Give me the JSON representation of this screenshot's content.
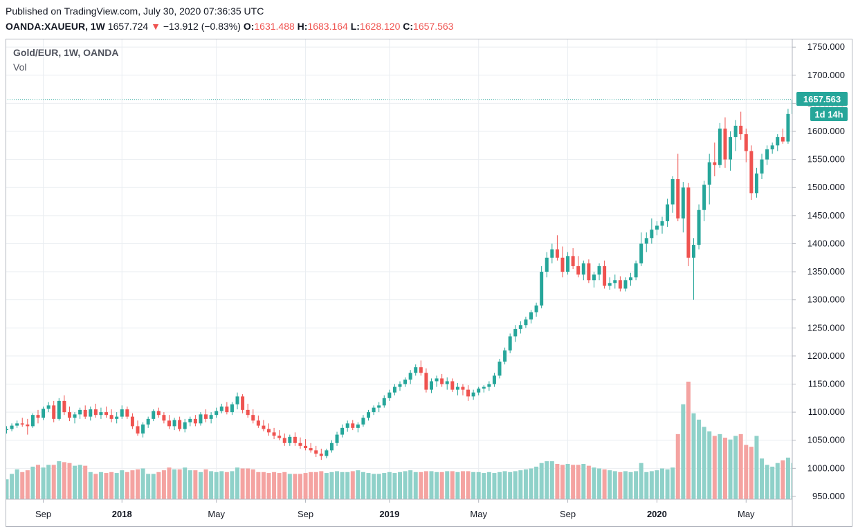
{
  "header": {
    "published": "Published on TradingView.com, July 30, 2020 07:36:35 UTC",
    "symbol": "OANDA:XAUEUR, 1W",
    "last": "1657.724",
    "arrow": "▼",
    "change": "−13.912 (−0.83%)",
    "o_label": "O:",
    "o_value": "1631.488",
    "h_label": "H:",
    "h_value": "1683.164",
    "l_label": "L:",
    "l_value": "1628.120",
    "c_label": "C:",
    "c_value": "1657.563"
  },
  "legend": {
    "title": "Gold/EUR, 1W, OANDA",
    "volume": "Vol"
  },
  "price_tag": {
    "price": "1657.563",
    "countdown": "1d 14h"
  },
  "colors": {
    "up": "#26a69a",
    "down": "#ef5350",
    "vol_up": "#8fd1c9",
    "vol_down": "#f4a3a1",
    "grid": "#e9edf1"
  },
  "chart_data": {
    "type": "candlestick",
    "y_axis_ticks": [
      "1750.000",
      "1700.000",
      "1650.000",
      "1600.000",
      "1550.000",
      "1500.000",
      "1450.000",
      "1400.000",
      "1350.000",
      "1300.000",
      "1250.000",
      "1200.000",
      "1150.000",
      "1100.000",
      "1050.000",
      "1000.000",
      "950.000"
    ],
    "x_axis_ticks": [
      {
        "label": "Sep",
        "bold": false,
        "bar": 7
      },
      {
        "label": "2018",
        "bold": true,
        "bar": 22
      },
      {
        "label": "May",
        "bold": false,
        "bar": 40
      },
      {
        "label": "Sep",
        "bold": false,
        "bar": 57
      },
      {
        "label": "2019",
        "bold": true,
        "bar": 73
      },
      {
        "label": "May",
        "bold": false,
        "bar": 90
      },
      {
        "label": "Sep",
        "bold": false,
        "bar": 107
      },
      {
        "label": "2020",
        "bold": true,
        "bar": 124
      },
      {
        "label": "May",
        "bold": false,
        "bar": 141
      }
    ],
    "ylim": [
      945,
      1765
    ],
    "bars": [
      [
        1068,
        1075,
        1062,
        1070,
        22
      ],
      [
        1070,
        1080,
        1066,
        1076,
        28
      ],
      [
        1076,
        1085,
        1072,
        1080,
        33
      ],
      [
        1080,
        1090,
        1074,
        1078,
        30
      ],
      [
        1078,
        1088,
        1060,
        1075,
        32
      ],
      [
        1075,
        1098,
        1072,
        1095,
        36
      ],
      [
        1095,
        1104,
        1080,
        1090,
        38
      ],
      [
        1090,
        1110,
        1086,
        1106,
        35
      ],
      [
        1106,
        1118,
        1100,
        1112,
        38
      ],
      [
        1112,
        1120,
        1082,
        1088,
        38
      ],
      [
        1088,
        1125,
        1085,
        1120,
        42
      ],
      [
        1120,
        1130,
        1095,
        1100,
        41
      ],
      [
        1100,
        1110,
        1084,
        1090,
        40
      ],
      [
        1090,
        1100,
        1080,
        1096,
        37
      ],
      [
        1096,
        1108,
        1088,
        1104,
        38
      ],
      [
        1104,
        1112,
        1088,
        1092,
        37
      ],
      [
        1092,
        1110,
        1085,
        1105,
        30
      ],
      [
        1105,
        1115,
        1090,
        1095,
        28
      ],
      [
        1095,
        1108,
        1088,
        1100,
        30
      ],
      [
        1100,
        1110,
        1090,
        1095,
        29
      ],
      [
        1095,
        1105,
        1082,
        1088,
        30
      ],
      [
        1088,
        1100,
        1080,
        1092,
        29
      ],
      [
        1092,
        1112,
        1088,
        1105,
        32
      ],
      [
        1105,
        1110,
        1088,
        1092,
        30
      ],
      [
        1092,
        1098,
        1070,
        1075,
        32
      ],
      [
        1075,
        1085,
        1058,
        1062,
        33
      ],
      [
        1062,
        1082,
        1055,
        1078,
        34
      ],
      [
        1078,
        1092,
        1072,
        1088,
        28
      ],
      [
        1088,
        1105,
        1084,
        1102,
        28
      ],
      [
        1102,
        1108,
        1090,
        1095,
        30
      ],
      [
        1095,
        1100,
        1080,
        1085,
        32
      ],
      [
        1085,
        1095,
        1070,
        1075,
        35
      ],
      [
        1075,
        1090,
        1068,
        1086,
        33
      ],
      [
        1086,
        1092,
        1066,
        1070,
        33
      ],
      [
        1070,
        1088,
        1064,
        1082,
        35
      ],
      [
        1082,
        1092,
        1075,
        1088,
        32
      ],
      [
        1088,
        1095,
        1075,
        1080,
        32
      ],
      [
        1080,
        1100,
        1076,
        1096,
        30
      ],
      [
        1096,
        1105,
        1082,
        1088,
        33
      ],
      [
        1088,
        1100,
        1080,
        1095,
        31
      ],
      [
        1095,
        1108,
        1090,
        1102,
        30
      ],
      [
        1102,
        1115,
        1098,
        1110,
        31
      ],
      [
        1110,
        1118,
        1096,
        1100,
        30
      ],
      [
        1100,
        1118,
        1095,
        1114,
        31
      ],
      [
        1114,
        1135,
        1105,
        1128,
        35
      ],
      [
        1128,
        1132,
        1098,
        1104,
        34
      ],
      [
        1104,
        1115,
        1090,
        1095,
        34
      ],
      [
        1095,
        1105,
        1080,
        1085,
        33
      ],
      [
        1085,
        1094,
        1072,
        1076,
        30
      ],
      [
        1076,
        1086,
        1066,
        1070,
        30
      ],
      [
        1070,
        1080,
        1058,
        1064,
        29
      ],
      [
        1064,
        1072,
        1052,
        1058,
        30
      ],
      [
        1058,
        1068,
        1050,
        1054,
        29
      ],
      [
        1054,
        1062,
        1040,
        1045,
        30
      ],
      [
        1045,
        1060,
        1040,
        1056,
        28
      ],
      [
        1056,
        1064,
        1040,
        1045,
        28
      ],
      [
        1045,
        1055,
        1035,
        1040,
        28
      ],
      [
        1040,
        1052,
        1032,
        1036,
        29
      ],
      [
        1036,
        1045,
        1028,
        1032,
        30
      ],
      [
        1032,
        1040,
        1020,
        1026,
        30
      ],
      [
        1026,
        1035,
        1015,
        1022,
        31
      ],
      [
        1022,
        1035,
        1018,
        1032,
        29
      ],
      [
        1032,
        1050,
        1028,
        1045,
        30
      ],
      [
        1045,
        1065,
        1040,
        1060,
        31
      ],
      [
        1060,
        1078,
        1055,
        1072,
        30
      ],
      [
        1072,
        1085,
        1065,
        1080,
        30
      ],
      [
        1080,
        1086,
        1068,
        1072,
        31
      ],
      [
        1072,
        1082,
        1064,
        1078,
        32
      ],
      [
        1078,
        1095,
        1074,
        1090,
        30
      ],
      [
        1090,
        1104,
        1085,
        1100,
        29
      ],
      [
        1100,
        1112,
        1095,
        1108,
        28
      ],
      [
        1108,
        1118,
        1100,
        1112,
        28
      ],
      [
        1112,
        1130,
        1108,
        1125,
        29
      ],
      [
        1125,
        1140,
        1120,
        1135,
        30
      ],
      [
        1135,
        1150,
        1130,
        1145,
        29
      ],
      [
        1145,
        1155,
        1138,
        1150,
        30
      ],
      [
        1150,
        1162,
        1145,
        1158,
        31
      ],
      [
        1158,
        1175,
        1150,
        1170,
        32
      ],
      [
        1170,
        1185,
        1165,
        1180,
        30
      ],
      [
        1180,
        1192,
        1165,
        1170,
        30
      ],
      [
        1170,
        1178,
        1135,
        1140,
        31
      ],
      [
        1140,
        1160,
        1134,
        1155,
        31
      ],
      [
        1155,
        1165,
        1145,
        1160,
        30
      ],
      [
        1160,
        1168,
        1145,
        1150,
        30
      ],
      [
        1150,
        1162,
        1140,
        1155,
        31
      ],
      [
        1155,
        1160,
        1136,
        1140,
        31
      ],
      [
        1140,
        1152,
        1130,
        1145,
        30
      ],
      [
        1145,
        1150,
        1130,
        1140,
        31
      ],
      [
        1140,
        1148,
        1120,
        1128,
        31
      ],
      [
        1128,
        1140,
        1122,
        1135,
        30
      ],
      [
        1135,
        1145,
        1130,
        1142,
        30
      ],
      [
        1142,
        1148,
        1135,
        1145,
        29
      ],
      [
        1145,
        1155,
        1138,
        1150,
        30
      ],
      [
        1150,
        1170,
        1145,
        1165,
        29
      ],
      [
        1165,
        1195,
        1160,
        1190,
        30
      ],
      [
        1190,
        1215,
        1185,
        1210,
        31
      ],
      [
        1210,
        1240,
        1205,
        1235,
        30
      ],
      [
        1235,
        1255,
        1225,
        1248,
        31
      ],
      [
        1248,
        1262,
        1240,
        1255,
        32
      ],
      [
        1255,
        1270,
        1250,
        1265,
        33
      ],
      [
        1265,
        1282,
        1258,
        1278,
        34
      ],
      [
        1278,
        1295,
        1270,
        1290,
        36
      ],
      [
        1290,
        1360,
        1285,
        1350,
        40
      ],
      [
        1350,
        1385,
        1340,
        1375,
        42
      ],
      [
        1375,
        1400,
        1365,
        1390,
        42
      ],
      [
        1390,
        1415,
        1370,
        1375,
        39
      ],
      [
        1375,
        1395,
        1340,
        1350,
        38
      ],
      [
        1350,
        1385,
        1345,
        1378,
        39
      ],
      [
        1378,
        1392,
        1355,
        1360,
        38
      ],
      [
        1360,
        1378,
        1340,
        1345,
        38
      ],
      [
        1345,
        1370,
        1335,
        1365,
        39
      ],
      [
        1365,
        1372,
        1330,
        1335,
        37
      ],
      [
        1335,
        1350,
        1322,
        1345,
        35
      ],
      [
        1345,
        1365,
        1335,
        1360,
        34
      ],
      [
        1360,
        1370,
        1320,
        1325,
        33
      ],
      [
        1325,
        1340,
        1318,
        1330,
        32
      ],
      [
        1330,
        1345,
        1320,
        1335,
        31
      ],
      [
        1335,
        1342,
        1315,
        1320,
        30
      ],
      [
        1320,
        1340,
        1315,
        1335,
        31
      ],
      [
        1335,
        1348,
        1325,
        1340,
        30
      ],
      [
        1340,
        1370,
        1335,
        1365,
        31
      ],
      [
        1365,
        1420,
        1360,
        1400,
        40
      ],
      [
        1400,
        1420,
        1385,
        1410,
        30
      ],
      [
        1410,
        1445,
        1400,
        1425,
        31
      ],
      [
        1425,
        1440,
        1415,
        1432,
        32
      ],
      [
        1432,
        1448,
        1418,
        1440,
        34
      ],
      [
        1440,
        1480,
        1430,
        1470,
        33
      ],
      [
        1470,
        1520,
        1455,
        1515,
        35
      ],
      [
        1515,
        1560,
        1440,
        1445,
        72
      ],
      [
        1445,
        1510,
        1420,
        1500,
        105
      ],
      [
        1500,
        1508,
        1360,
        1375,
        130
      ],
      [
        1375,
        1410,
        1300,
        1398,
        95
      ],
      [
        1398,
        1470,
        1390,
        1460,
        88
      ],
      [
        1460,
        1512,
        1440,
        1505,
        80
      ],
      [
        1505,
        1560,
        1470,
        1545,
        75
      ],
      [
        1545,
        1580,
        1520,
        1540,
        70
      ],
      [
        1540,
        1615,
        1535,
        1605,
        72
      ],
      [
        1605,
        1625,
        1535,
        1550,
        68
      ],
      [
        1550,
        1600,
        1530,
        1590,
        66
      ],
      [
        1590,
        1620,
        1565,
        1610,
        70
      ],
      [
        1610,
        1635,
        1585,
        1595,
        72
      ],
      [
        1595,
        1605,
        1545,
        1565,
        60
      ],
      [
        1565,
        1575,
        1478,
        1490,
        58
      ],
      [
        1490,
        1535,
        1482,
        1525,
        70
      ],
      [
        1525,
        1560,
        1515,
        1550,
        45
      ],
      [
        1550,
        1575,
        1540,
        1568,
        38
      ],
      [
        1568,
        1580,
        1560,
        1575,
        36
      ],
      [
        1575,
        1595,
        1565,
        1590,
        40
      ],
      [
        1590,
        1605,
        1578,
        1582,
        43
      ],
      [
        1582,
        1640,
        1578,
        1631,
        46
      ],
      [
        1631,
        1683,
        1628,
        1657,
        40
      ]
    ],
    "vol_max": 130
  }
}
